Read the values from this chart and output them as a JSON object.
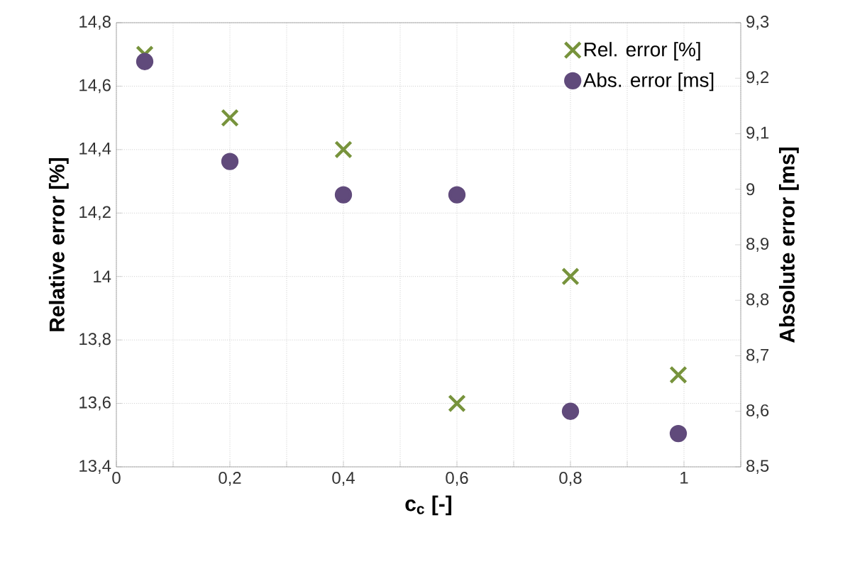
{
  "chart_data": {
    "type": "scatter",
    "xlabel": "c$_{c}$ [-]",
    "ylabel": "Relative error [%]",
    "y2label": "Absolute error [ms]",
    "xlim": [
      0,
      1.1
    ],
    "xticks": [
      0,
      {
        "value": 0.1,
        "label": null
      },
      {
        "value": 0.2,
        "label": "0,2"
      },
      {
        "value": 0.3,
        "label": null
      },
      {
        "value": 0.4,
        "label": "0,4"
      },
      {
        "value": 0.5,
        "label": null
      },
      {
        "value": 0.6,
        "label": "0,6"
      },
      {
        "value": 0.7,
        "label": null
      },
      {
        "value": 0.8,
        "label": "0,8"
      },
      {
        "value": 0.9,
        "label": null
      },
      1,
      {
        "value": 1.1,
        "label": null
      }
    ],
    "ylim": [
      13.4,
      14.8
    ],
    "yticks": [
      {
        "value": 13.4,
        "label": "13,4"
      },
      {
        "value": 13.6,
        "label": "13,6"
      },
      {
        "value": 13.8,
        "label": "13,8"
      },
      14,
      {
        "value": 14.2,
        "label": "14,2"
      },
      {
        "value": 14.4,
        "label": "14,4"
      },
      {
        "value": 14.6,
        "label": "14,6"
      },
      {
        "value": 14.8,
        "label": "14,8"
      }
    ],
    "y2lim": [
      8.5,
      9.3
    ],
    "y2ticks": [
      {
        "value": 8.5,
        "label": "8,5"
      },
      {
        "value": 8.6,
        "label": "8,6"
      },
      {
        "value": 8.7,
        "label": "8,7"
      },
      {
        "value": 8.8,
        "label": "8,8"
      },
      {
        "value": 8.9,
        "label": "8,9"
      },
      9,
      {
        "value": 9.1,
        "label": "9,1"
      },
      {
        "value": 9.2,
        "label": "9,2"
      },
      {
        "value": 9.3,
        "label": "9,3"
      }
    ],
    "x": [
      0.05,
      0.2,
      0.4,
      0.6,
      0.8,
      0.99
    ],
    "grid": true,
    "legend": "top right",
    "series": [
      {
        "name": "Rel. error [%]",
        "color": "#77933c",
        "marker": "cross",
        "values": [
          14.7,
          14.5,
          14.4,
          13.6,
          14.0,
          13.69
        ]
      },
      {
        "name": "Abs. error [ms]",
        "color": "#604a7b",
        "marker": "circle",
        "axis": "y2",
        "values": [
          9.23,
          9.05,
          8.99,
          8.99,
          8.6,
          8.56
        ]
      }
    ]
  }
}
